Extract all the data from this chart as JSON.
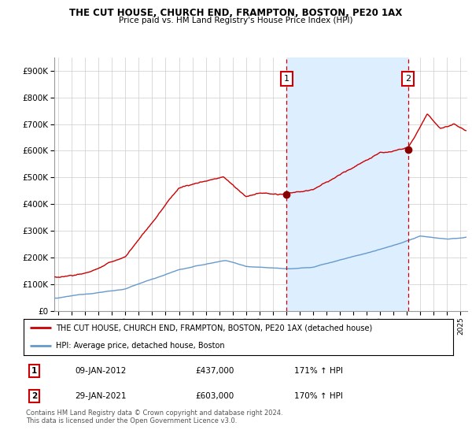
{
  "title": "THE CUT HOUSE, CHURCH END, FRAMPTON, BOSTON, PE20 1AX",
  "subtitle": "Price paid vs. HM Land Registry's House Price Index (HPI)",
  "ylabel_ticks": [
    "£0",
    "£100K",
    "£200K",
    "£300K",
    "£400K",
    "£500K",
    "£600K",
    "£700K",
    "£800K",
    "£900K"
  ],
  "ytick_vals": [
    0,
    100000,
    200000,
    300000,
    400000,
    500000,
    600000,
    700000,
    800000,
    900000
  ],
  "ylim": [
    0,
    950000
  ],
  "xlim_start": 1994.7,
  "xlim_end": 2025.5,
  "legend_line1": "THE CUT HOUSE, CHURCH END, FRAMPTON, BOSTON, PE20 1AX (detached house)",
  "legend_line2": "HPI: Average price, detached house, Boston",
  "point1_label": "1",
  "point1_date": "09-JAN-2012",
  "point1_price": "£437,000",
  "point1_hpi": "171% ↑ HPI",
  "point1_x": 2012.03,
  "point1_y": 437000,
  "point2_label": "2",
  "point2_date": "29-JAN-2021",
  "point2_price": "£603,000",
  "point2_hpi": "170% ↑ HPI",
  "point2_x": 2021.08,
  "point2_y": 603000,
  "footer": "Contains HM Land Registry data © Crown copyright and database right 2024.\nThis data is licensed under the Open Government Licence v3.0.",
  "red_color": "#cc0000",
  "blue_color": "#6699cc",
  "shade_color": "#ddeeff",
  "background_color": "#ffffff",
  "grid_color": "#cccccc",
  "point_box_color": "#cc0000"
}
